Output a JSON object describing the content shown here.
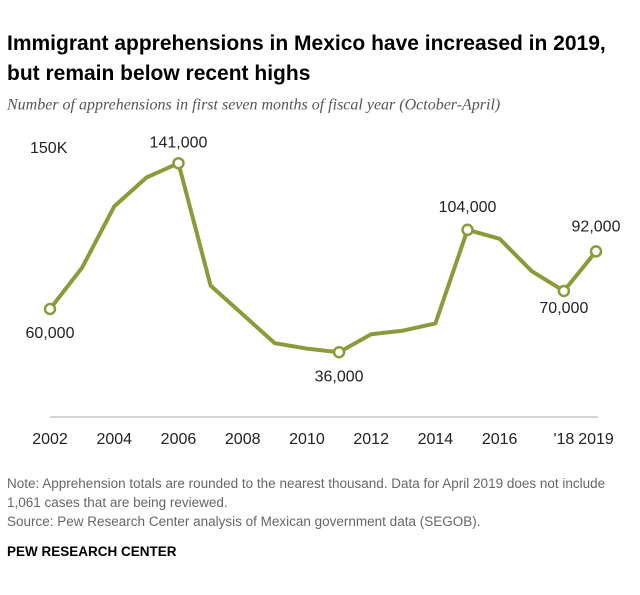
{
  "chart_data": {
    "type": "line",
    "title": "Immigrant apprehensions in Mexico have increased in 2019, but remain below recent highs",
    "subtitle": "Number of apprehensions in first seven months of fiscal year (October-April)",
    "categories": [
      "2002",
      null,
      "2004",
      null,
      "2006",
      null,
      "2008",
      null,
      "2010",
      null,
      "2012",
      null,
      "2014",
      null,
      "2016",
      null,
      "'18",
      "2019"
    ],
    "series": [
      {
        "color": "#8c9a3a",
        "values": [
          60000,
          83000,
          117000,
          133000,
          141000,
          73000,
          57000,
          41000,
          38000,
          36000,
          46000,
          48000,
          52000,
          104000,
          99000,
          81000,
          70000,
          92000
        ],
        "value_labels": [
          "60,000",
          null,
          null,
          null,
          "141,000",
          null,
          null,
          null,
          null,
          "36,000",
          null,
          null,
          null,
          "104,000",
          null,
          null,
          "70,000",
          "92,000"
        ]
      }
    ],
    "ylim": [
      0,
      150000
    ],
    "yticks": [
      {
        "value": 150000,
        "label": "150K"
      }
    ],
    "grid": false,
    "note": "Note: Apprehension totals are rounded to the nearest thousand. Data for April 2019 does not include 1,061 cases that are being reviewed.",
    "source": "Source: Pew Research Center analysis of Mexican government data (SEGOB).",
    "footer": "PEW RESEARCH CENTER"
  }
}
